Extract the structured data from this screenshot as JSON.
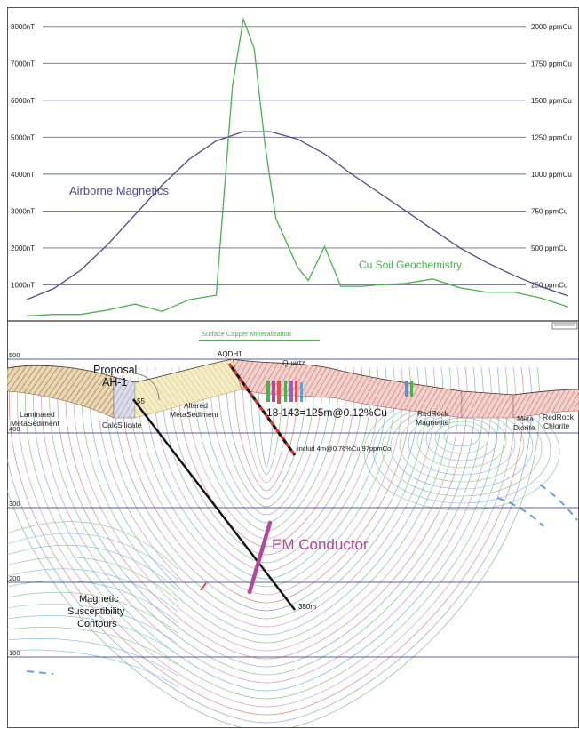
{
  "chart_data": {
    "type": "line",
    "title": "",
    "left_axis": {
      "ticks": [
        "1000nT",
        "2000nT",
        "3000nT",
        "4000nT",
        "5000nT",
        "6000nT",
        "7000nT",
        "8000nT"
      ],
      "values": [
        1000,
        2000,
        3000,
        4000,
        5000,
        6000,
        7000,
        8000
      ],
      "ylim": [
        0,
        8500
      ]
    },
    "right_axis": {
      "ticks": [
        "250 ppmCu",
        "500 ppmCu",
        "750 ppmCu",
        "1000 ppmCu",
        "1250 ppmCu",
        "1500 ppmCu",
        "1750 ppmCu",
        "2000 ppmCu"
      ],
      "values": [
        250,
        500,
        750,
        1000,
        1250,
        1500,
        1750,
        2000
      ],
      "ylim": [
        0,
        2125
      ]
    },
    "grid": true,
    "series": [
      {
        "name": "Airborne Magnetics",
        "color": "#4a4a8c",
        "unit": "nT",
        "x": [
          0,
          5,
          10,
          15,
          20,
          25,
          30,
          35,
          40,
          45,
          50,
          55,
          60,
          65,
          70,
          75,
          80,
          85,
          90,
          95,
          100
        ],
        "values": [
          600,
          900,
          1400,
          2100,
          2900,
          3700,
          4400,
          4900,
          5150,
          5150,
          4950,
          4550,
          4000,
          3500,
          3000,
          2500,
          2000,
          1600,
          1250,
          950,
          700
        ]
      },
      {
        "name": "Cu Soil Geochemistry",
        "color": "#4caf50",
        "unit": "ppmCu",
        "x": [
          0,
          5,
          10,
          15,
          20,
          25,
          30,
          35,
          38,
          40,
          42,
          44,
          46,
          50,
          52,
          55,
          58,
          60,
          62,
          65,
          70,
          75,
          80,
          85,
          90,
          95,
          100
        ],
        "values": [
          40,
          50,
          50,
          80,
          120,
          70,
          150,
          180,
          1600,
          2050,
          1850,
          1200,
          700,
          370,
          280,
          510,
          240,
          240,
          240,
          250,
          260,
          290,
          230,
          200,
          200,
          160,
          100
        ]
      }
    ]
  },
  "section": {
    "elevation_labels": [
      "500",
      "400",
      "300",
      "200",
      "100"
    ],
    "surface_mineralization_label": "Surface Copper Mineralization",
    "drillhole_label": "AQDH1",
    "proposal_label_line1": "Proposal",
    "proposal_label_line2": "AH-1",
    "dip_label": "55",
    "end_depth_label": "350m",
    "intercept_label": "18-143=125m@0.12%Cu",
    "include_label": "includ 4m@0.76%Cu 97ppmCo",
    "em_label": "EM Conductor",
    "contours_label_lines": [
      "Magnetic",
      "Susceptibility",
      "Contours"
    ],
    "rock_units": {
      "quartz": "Quartz",
      "laminated_1": "Laminated",
      "laminated_2": "MetaSediment",
      "calc": "CalcSilicate",
      "altered_1": "Altered",
      "altered_2": "MetaSediment",
      "redrock_mag_1": "RedRock",
      "redrock_mag_2": "Magnetite",
      "meta_diorite_1": "Meta",
      "meta_diorite_2": "Diorite",
      "redrock_chl_1": "RedRock",
      "redrock_chl_2": "Chlorite"
    },
    "colors": {
      "airborne_mag": "#4a4a8c",
      "cu_soil": "#4caf50",
      "em_conductor": "#b04a9c",
      "drillhole": "#111111"
    }
  }
}
